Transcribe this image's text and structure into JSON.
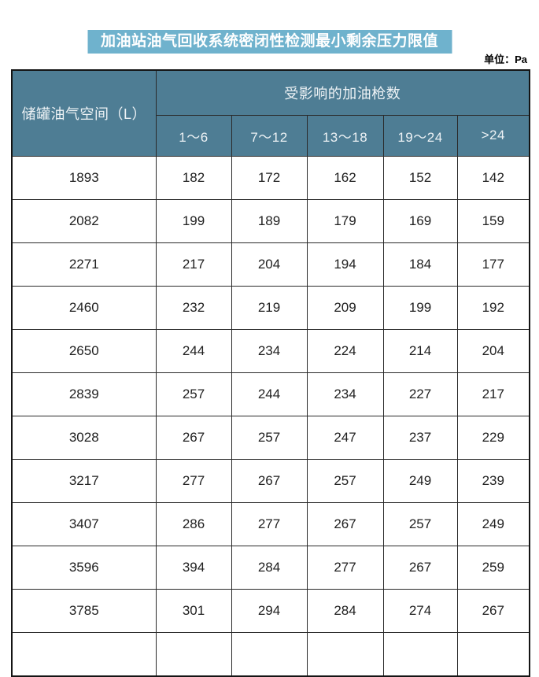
{
  "title": "加油站油气回收系统密闭性检测最小剩余压力限值",
  "unit_label": "单位：Pa",
  "colors": {
    "title_bg": "#6FB2CD",
    "header_bg": "#4E7D94",
    "header_text": "#EDF2F5",
    "border": "#2a2a2a",
    "data_text": "#212121"
  },
  "table": {
    "row_header": "储罐油气空间（L）",
    "col_group_header": "受影响的加油枪数",
    "col_headers": [
      "1～6",
      "7～12",
      "13～18",
      "19～24",
      ">24"
    ],
    "rows": [
      {
        "space": "1893",
        "values": [
          "182",
          "172",
          "162",
          "152",
          "142"
        ]
      },
      {
        "space": "2082",
        "values": [
          "199",
          "189",
          "179",
          "169",
          "159"
        ]
      },
      {
        "space": "2271",
        "values": [
          "217",
          "204",
          "194",
          "184",
          "177"
        ]
      },
      {
        "space": "2460",
        "values": [
          "232",
          "219",
          "209",
          "199",
          "192"
        ]
      },
      {
        "space": "2650",
        "values": [
          "244",
          "234",
          "224",
          "214",
          "204"
        ]
      },
      {
        "space": "2839",
        "values": [
          "257",
          "244",
          "234",
          "227",
          "217"
        ]
      },
      {
        "space": "3028",
        "values": [
          "267",
          "257",
          "247",
          "237",
          "229"
        ]
      },
      {
        "space": "3217",
        "values": [
          "277",
          "267",
          "257",
          "249",
          "239"
        ]
      },
      {
        "space": "3407",
        "values": [
          "286",
          "277",
          "267",
          "257",
          "249"
        ]
      },
      {
        "space": "3596",
        "values": [
          "394",
          "284",
          "277",
          "267",
          "259"
        ]
      },
      {
        "space": "3785",
        "values": [
          "301",
          "294",
          "284",
          "274",
          "267"
        ]
      }
    ]
  }
}
